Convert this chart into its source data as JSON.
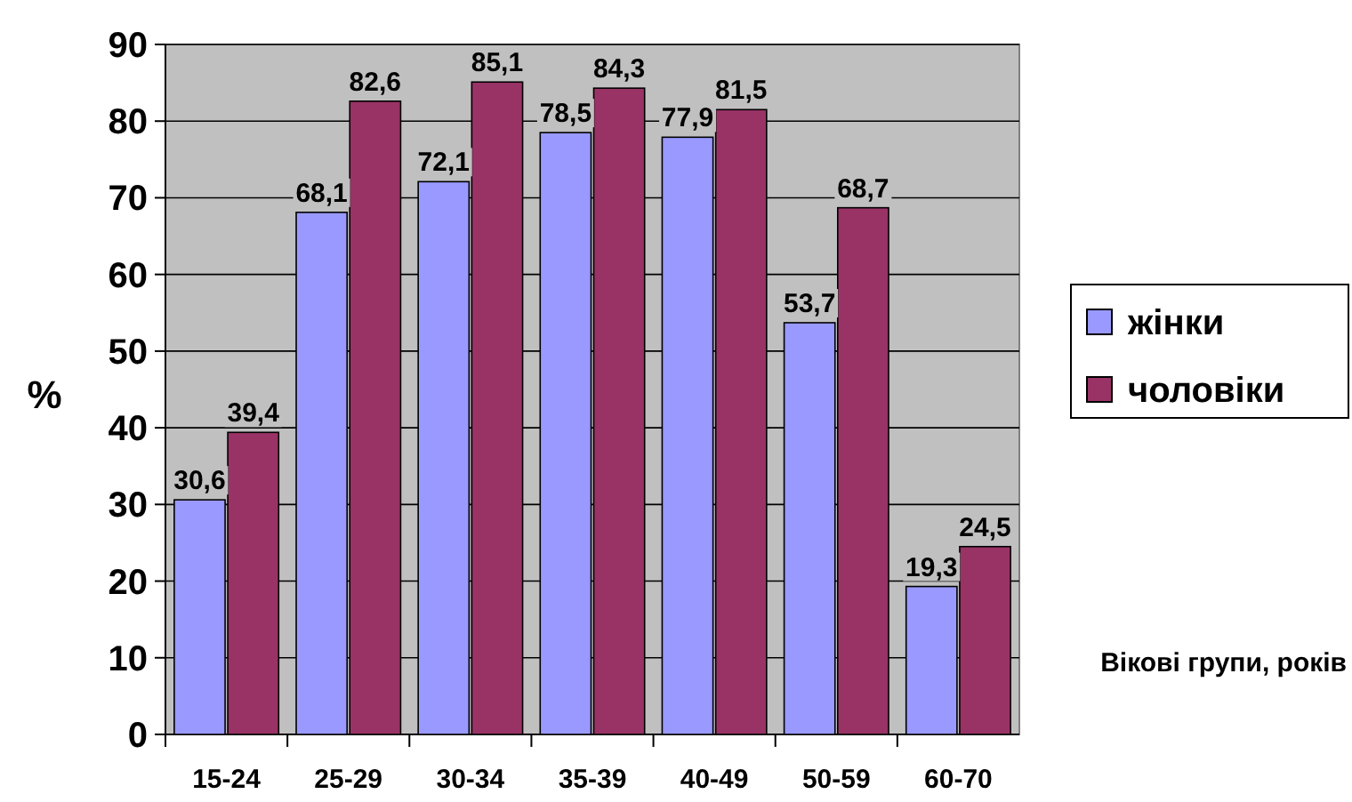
{
  "chart_data": {
    "type": "bar",
    "ylabel": "%",
    "xlabel": "Вікові групи, років",
    "categories": [
      "15-24",
      "25-29",
      "30-34",
      "35-39",
      "40-49",
      "50-59",
      "60-70"
    ],
    "series": [
      {
        "name": "жінки",
        "color": "#9999ff",
        "values": [
          30.6,
          68.1,
          72.1,
          78.5,
          77.9,
          53.7,
          19.3
        ],
        "value_labels": [
          "30,6",
          "68,1",
          "72,1",
          "78,5",
          "77,9",
          "53,7",
          "19,3"
        ]
      },
      {
        "name": "чоловіки",
        "color": "#993366",
        "values": [
          39.4,
          82.6,
          85.1,
          84.3,
          81.5,
          68.7,
          24.5
        ],
        "value_labels": [
          "39,4",
          "82,6",
          "85,1",
          "84,3",
          "81,5",
          "68,7",
          "24,5"
        ]
      }
    ],
    "ylim": [
      0,
      90
    ],
    "yticks": [
      0,
      10,
      20,
      30,
      40,
      50,
      60,
      70,
      80,
      90
    ],
    "grid": "y",
    "legend": "right"
  }
}
